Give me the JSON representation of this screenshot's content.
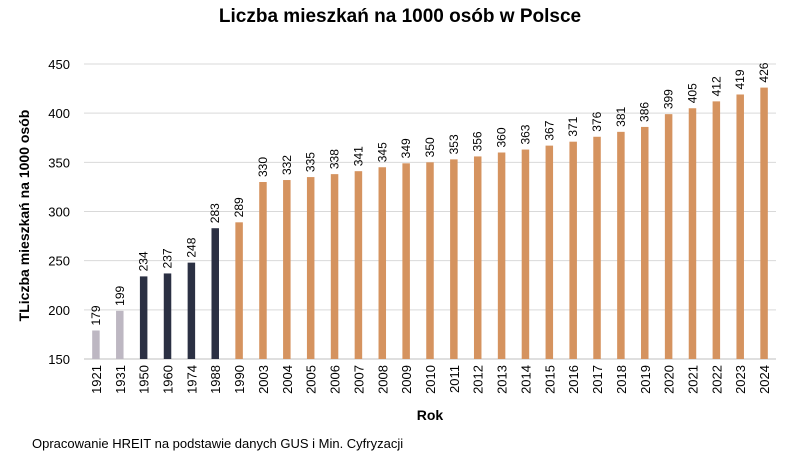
{
  "chart_data": {
    "type": "bar",
    "title": "Liczba mieszkań na 1000 osób w Polsce",
    "xlabel": "Rok",
    "ylabel": "TLiczba mieszkań na 1000 osób",
    "ylim": [
      150,
      450
    ],
    "yticks": [
      150,
      200,
      250,
      300,
      350,
      400,
      450
    ],
    "grid": true,
    "legend": "none",
    "categories": [
      "1921",
      "1931",
      "1950",
      "1960",
      "1974",
      "1988",
      "1990",
      "2003",
      "2004",
      "2005",
      "2006",
      "2007",
      "2008",
      "2009",
      "2010",
      "2011",
      "2012",
      "2013",
      "2014",
      "2015",
      "2016",
      "2017",
      "2018",
      "2019",
      "2020",
      "2021",
      "2022",
      "2023",
      "2024"
    ],
    "values": [
      179,
      199,
      234,
      237,
      248,
      283,
      289,
      330,
      332,
      335,
      338,
      341,
      345,
      349,
      350,
      353,
      356,
      360,
      363,
      367,
      371,
      376,
      381,
      386,
      399,
      405,
      412,
      419,
      426
    ],
    "bar_colors": [
      "#bdb7c2",
      "#bdb7c2",
      "#2b3043",
      "#2b3043",
      "#2b3043",
      "#2b3043",
      "#d5935f",
      "#d5935f",
      "#d5935f",
      "#d5935f",
      "#d5935f",
      "#d5935f",
      "#d5935f",
      "#d5935f",
      "#d5935f",
      "#d5935f",
      "#d5935f",
      "#d5935f",
      "#d5935f",
      "#d5935f",
      "#d5935f",
      "#d5935f",
      "#d5935f",
      "#d5935f",
      "#d5935f",
      "#d5935f",
      "#d5935f",
      "#d5935f",
      "#d5935f"
    ],
    "colors": {
      "grid": "#d9d9d9",
      "axis": "#bfbfbf"
    }
  },
  "footer": {
    "source": "Opracowanie HREIT na podstawie danych GUS i Min. Cyfryzacji"
  }
}
